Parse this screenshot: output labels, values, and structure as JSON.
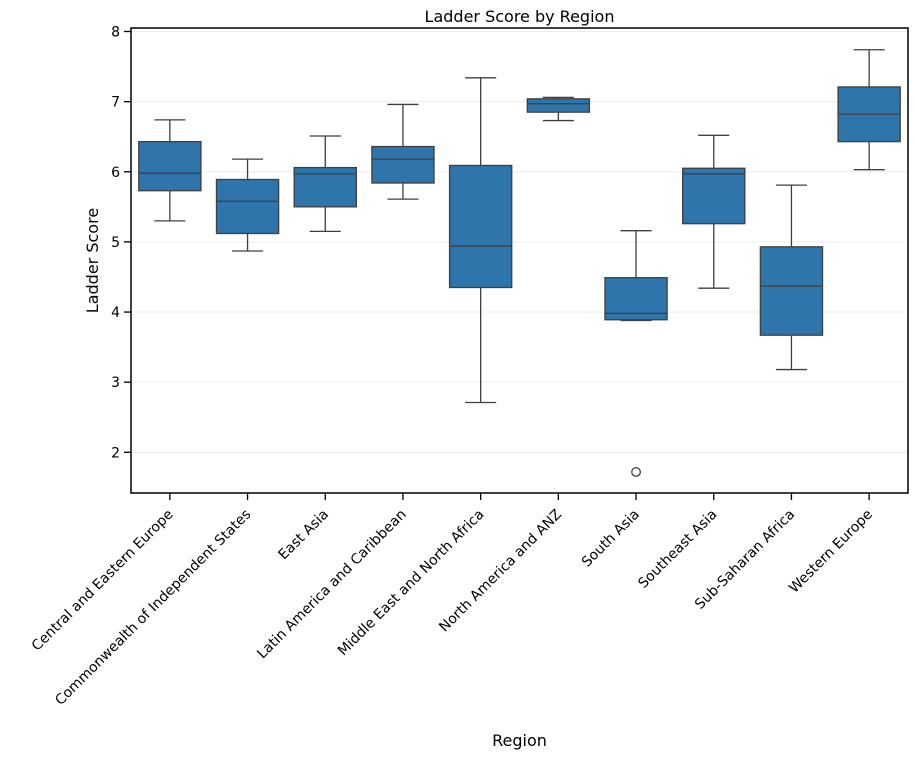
{
  "chart_data": {
    "type": "box",
    "title": "Ladder Score by Region",
    "xlabel": "Region",
    "ylabel": "Ladder Score",
    "ylim": [
      1.42,
      8.05
    ],
    "yticks": [
      2,
      3,
      4,
      5,
      6,
      7,
      8
    ],
    "grid": true,
    "box_color": "#2e75ab",
    "line_color": "#3f3f3f",
    "categories": [
      "Central and Eastern Europe",
      "Commonwealth of Independent States",
      "East Asia",
      "Latin America and Caribbean",
      "Middle East and North Africa",
      "North America and ANZ",
      "South Asia",
      "Southeast Asia",
      "Sub-Saharan Africa",
      "Western Europe"
    ],
    "boxes": [
      {
        "whisker_low": 5.3,
        "q1": 5.73,
        "median": 5.98,
        "q3": 6.43,
        "whisker_high": 6.74,
        "outliers": []
      },
      {
        "whisker_low": 4.87,
        "q1": 5.12,
        "median": 5.58,
        "q3": 5.89,
        "whisker_high": 6.18,
        "outliers": []
      },
      {
        "whisker_low": 5.15,
        "q1": 5.5,
        "median": 5.97,
        "q3": 6.06,
        "whisker_high": 6.51,
        "outliers": []
      },
      {
        "whisker_low": 5.61,
        "q1": 5.84,
        "median": 6.18,
        "q3": 6.36,
        "whisker_high": 6.96,
        "outliers": []
      },
      {
        "whisker_low": 2.71,
        "q1": 4.35,
        "median": 4.94,
        "q3": 6.09,
        "whisker_high": 7.34,
        "outliers": []
      },
      {
        "whisker_low": 6.73,
        "q1": 6.85,
        "median": 6.97,
        "q3": 7.04,
        "whisker_high": 7.06,
        "outliers": []
      },
      {
        "whisker_low": 3.88,
        "q1": 3.89,
        "median": 3.98,
        "q3": 4.49,
        "whisker_high": 5.16,
        "outliers": [
          1.72
        ]
      },
      {
        "whisker_low": 4.34,
        "q1": 5.26,
        "median": 5.97,
        "q3": 6.05,
        "whisker_high": 6.52,
        "outliers": []
      },
      {
        "whisker_low": 3.18,
        "q1": 3.67,
        "median": 4.37,
        "q3": 4.93,
        "whisker_high": 5.81,
        "outliers": []
      },
      {
        "whisker_low": 6.03,
        "q1": 6.43,
        "median": 6.82,
        "q3": 7.21,
        "whisker_high": 7.74,
        "outliers": []
      }
    ]
  }
}
